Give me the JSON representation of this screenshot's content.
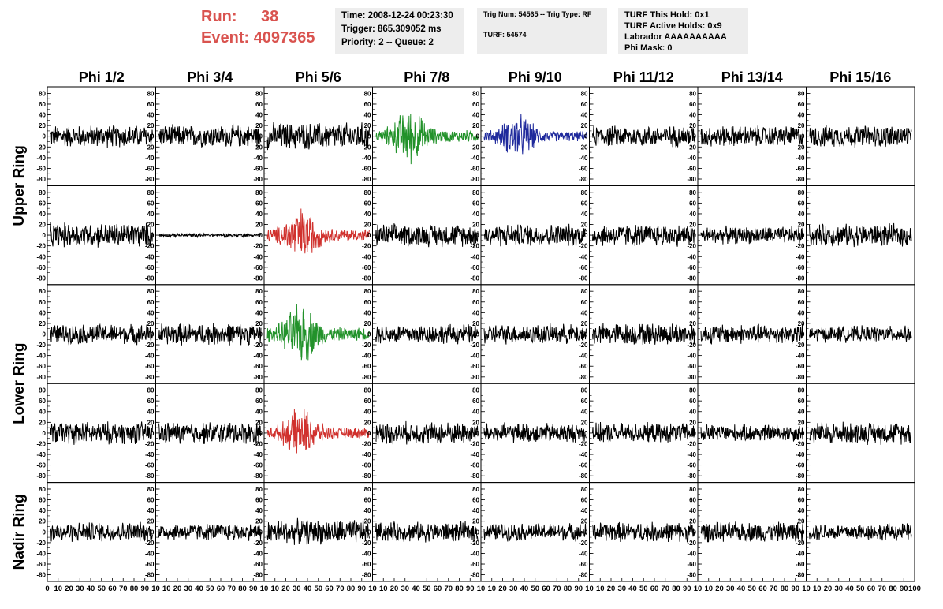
{
  "header": {
    "run_label": "Run:",
    "run_value": "38",
    "event_label": "Event:",
    "event_value": "4097365"
  },
  "time_box": {
    "time": "Time: 2008-12-24 00:23:30",
    "trigger": "Trigger: 865.309052 ms",
    "priority": "Priority: 2 -- Queue: 2"
  },
  "trig_box": {
    "trig": "Trig Num: 54565 -- Trig Type: RF",
    "turf": "TURF: 54574"
  },
  "turf_box": {
    "hold": "TURF This Hold: 0x1",
    "active": "TURF Active Holds: 0x9",
    "labrador": "Labrador AAAAAAAAAA",
    "phimask": "Phi Mask: 0"
  },
  "columns": [
    "Phi 1/2",
    "Phi 3/4",
    "Phi 5/6",
    "Phi 7/8",
    "Phi 9/10",
    "Phi 11/12",
    "Phi 13/14",
    "Phi 15/16"
  ],
  "ring_labels": [
    "Upper Ring",
    "Lower Ring",
    "Nadir Ring"
  ],
  "colors": {
    "red_text": "#d9534f",
    "trace_default": "#000000",
    "trace_green": "#22922a",
    "trace_blue": "#1f2a9c",
    "trace_red": "#d0312d"
  },
  "chart_data": {
    "type": "line",
    "panel_grid": "5 rows x 8 columns of waveform panels",
    "ylim": [
      -85,
      85
    ],
    "y_ticks": [
      -80,
      -60,
      -40,
      -20,
      0,
      20,
      40,
      60,
      80
    ],
    "xlim": [
      0,
      100
    ],
    "x_ticks": [
      0,
      10,
      20,
      30,
      40,
      50,
      60,
      70,
      80,
      90,
      100
    ],
    "x_tick_labels_row": [
      "0",
      "10",
      "20",
      "30",
      "40",
      "50",
      "60",
      "70",
      "80",
      "90",
      "10",
      "10",
      "20",
      "30",
      "40",
      "50",
      "60",
      "70",
      "80",
      "90",
      "10",
      "10",
      "20",
      "30",
      "40",
      "50",
      "60",
      "70",
      "80",
      "90",
      "10",
      "10",
      "20",
      "30",
      "40",
      "50",
      "60",
      "70",
      "80",
      "90",
      "10",
      "10",
      "20",
      "30",
      "40",
      "50",
      "60",
      "70",
      "80",
      "90",
      "10",
      "10",
      "20",
      "30",
      "40",
      "50",
      "60",
      "70",
      "80",
      "90",
      "10",
      "10",
      "20",
      "30",
      "40",
      "50",
      "60",
      "70",
      "80",
      "90",
      "10",
      "10",
      "20",
      "30",
      "40",
      "50",
      "60",
      "70",
      "80",
      "90",
      "100"
    ],
    "panels": [
      {
        "row": 0,
        "col": 0,
        "color": "#000000",
        "amp": 18,
        "burst": 0
      },
      {
        "row": 0,
        "col": 1,
        "color": "#000000",
        "amp": 18,
        "burst": 0
      },
      {
        "row": 0,
        "col": 2,
        "color": "#000000",
        "amp": 22,
        "burst": 0
      },
      {
        "row": 0,
        "col": 3,
        "color": "#22922a",
        "amp": 22,
        "burst": 1
      },
      {
        "row": 0,
        "col": 4,
        "color": "#1f2a9c",
        "amp": 18,
        "burst": 1
      },
      {
        "row": 0,
        "col": 5,
        "color": "#000000",
        "amp": 17,
        "burst": 0
      },
      {
        "row": 0,
        "col": 6,
        "color": "#000000",
        "amp": 17,
        "burst": 0
      },
      {
        "row": 0,
        "col": 7,
        "color": "#000000",
        "amp": 18,
        "burst": 0
      },
      {
        "row": 1,
        "col": 0,
        "color": "#000000",
        "amp": 20,
        "burst": 0
      },
      {
        "row": 1,
        "col": 1,
        "color": "#000000",
        "amp": 3,
        "burst": 0
      },
      {
        "row": 1,
        "col": 2,
        "color": "#d0312d",
        "amp": 22,
        "burst": 1
      },
      {
        "row": 1,
        "col": 3,
        "color": "#000000",
        "amp": 18,
        "burst": 0
      },
      {
        "row": 1,
        "col": 4,
        "color": "#000000",
        "amp": 18,
        "burst": 0
      },
      {
        "row": 1,
        "col": 5,
        "color": "#000000",
        "amp": 18,
        "burst": 0
      },
      {
        "row": 1,
        "col": 6,
        "color": "#000000",
        "amp": 14,
        "burst": 0
      },
      {
        "row": 1,
        "col": 7,
        "color": "#000000",
        "amp": 18,
        "burst": 0
      },
      {
        "row": 2,
        "col": 0,
        "color": "#000000",
        "amp": 16,
        "burst": 0
      },
      {
        "row": 2,
        "col": 1,
        "color": "#000000",
        "amp": 18,
        "burst": 0
      },
      {
        "row": 2,
        "col": 2,
        "color": "#22922a",
        "amp": 24,
        "burst": 1
      },
      {
        "row": 2,
        "col": 3,
        "color": "#000000",
        "amp": 16,
        "burst": 0
      },
      {
        "row": 2,
        "col": 4,
        "color": "#000000",
        "amp": 16,
        "burst": 0
      },
      {
        "row": 2,
        "col": 5,
        "color": "#000000",
        "amp": 18,
        "burst": 0
      },
      {
        "row": 2,
        "col": 6,
        "color": "#000000",
        "amp": 16,
        "burst": 0
      },
      {
        "row": 2,
        "col": 7,
        "color": "#000000",
        "amp": 13,
        "burst": 0
      },
      {
        "row": 3,
        "col": 0,
        "color": "#000000",
        "amp": 18,
        "burst": 0
      },
      {
        "row": 3,
        "col": 1,
        "color": "#000000",
        "amp": 18,
        "burst": 0
      },
      {
        "row": 3,
        "col": 2,
        "color": "#d0312d",
        "amp": 20,
        "burst": 1
      },
      {
        "row": 3,
        "col": 3,
        "color": "#000000",
        "amp": 18,
        "burst": 0
      },
      {
        "row": 3,
        "col": 4,
        "color": "#000000",
        "amp": 16,
        "burst": 0
      },
      {
        "row": 3,
        "col": 5,
        "color": "#000000",
        "amp": 16,
        "burst": 0
      },
      {
        "row": 3,
        "col": 6,
        "color": "#000000",
        "amp": 14,
        "burst": 0
      },
      {
        "row": 3,
        "col": 7,
        "color": "#000000",
        "amp": 18,
        "burst": 0
      },
      {
        "row": 4,
        "col": 0,
        "color": "#000000",
        "amp": 16,
        "burst": 0
      },
      {
        "row": 4,
        "col": 1,
        "color": "#000000",
        "amp": 14,
        "burst": 0
      },
      {
        "row": 4,
        "col": 2,
        "color": "#000000",
        "amp": 20,
        "burst": 0
      },
      {
        "row": 4,
        "col": 3,
        "color": "#000000",
        "amp": 16,
        "burst": 0
      },
      {
        "row": 4,
        "col": 4,
        "color": "#000000",
        "amp": 14,
        "burst": 0
      },
      {
        "row": 4,
        "col": 5,
        "color": "#000000",
        "amp": 16,
        "burst": 0
      },
      {
        "row": 4,
        "col": 6,
        "color": "#000000",
        "amp": 16,
        "burst": 0
      },
      {
        "row": 4,
        "col": 7,
        "color": "#000000",
        "amp": 14,
        "burst": 0
      }
    ]
  }
}
